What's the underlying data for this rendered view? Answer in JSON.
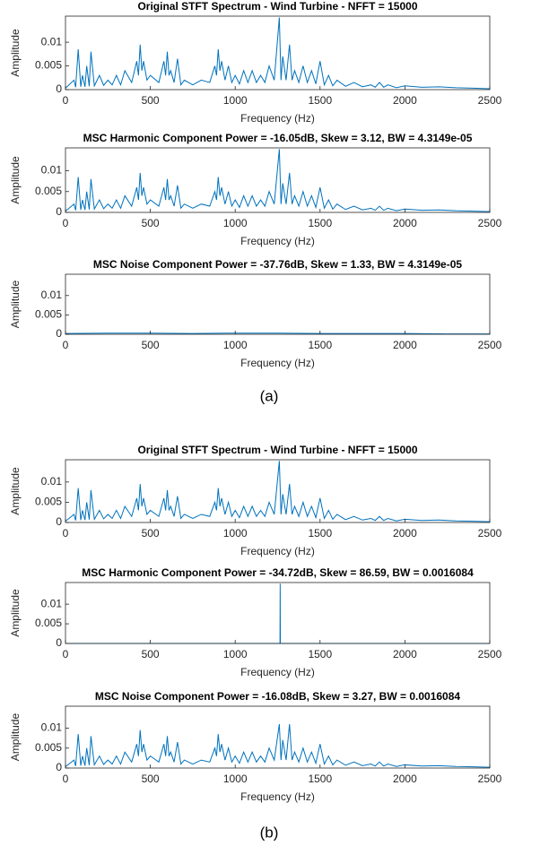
{
  "captions": [
    "(a)",
    "(b)"
  ],
  "chart_data": [
    {
      "type": "line",
      "title": "Original STFT Spectrum - Wind Turbine - NFFT = 15000",
      "xlabel": "Frequency (Hz)",
      "ylabel": "Amplitude",
      "color": "#0072bd",
      "xlim": [
        0,
        2500
      ],
      "xticks": [
        0,
        500,
        1000,
        1500,
        2000,
        2500
      ],
      "ylim": [
        0,
        0.0155
      ],
      "yticks": [
        0,
        0.005,
        0.01
      ],
      "x": [
        0,
        50,
        60,
        75,
        90,
        100,
        115,
        125,
        140,
        150,
        170,
        200,
        225,
        250,
        275,
        300,
        325,
        350,
        390,
        420,
        430,
        440,
        450,
        460,
        480,
        500,
        550,
        580,
        590,
        600,
        610,
        620,
        640,
        660,
        680,
        700,
        750,
        800,
        850,
        880,
        890,
        900,
        910,
        920,
        940,
        960,
        980,
        1000,
        1025,
        1050,
        1075,
        1100,
        1125,
        1150,
        1175,
        1200,
        1230,
        1260,
        1270,
        1280,
        1300,
        1320,
        1335,
        1350,
        1375,
        1400,
        1425,
        1450,
        1475,
        1500,
        1525,
        1550,
        1575,
        1600,
        1650,
        1700,
        1750,
        1800,
        1825,
        1850,
        1875,
        1900,
        1950,
        2000,
        2100,
        2200,
        2300,
        2400,
        2500
      ],
      "values": [
        0.0003,
        0.002,
        0.0005,
        0.0085,
        0.0006,
        0.003,
        0.0006,
        0.005,
        0.0007,
        0.008,
        0.0008,
        0.003,
        0.0009,
        0.002,
        0.001,
        0.003,
        0.001,
        0.004,
        0.0015,
        0.006,
        0.003,
        0.0095,
        0.004,
        0.006,
        0.002,
        0.003,
        0.0015,
        0.006,
        0.003,
        0.008,
        0.003,
        0.004,
        0.0015,
        0.0065,
        0.001,
        0.002,
        0.001,
        0.002,
        0.0015,
        0.005,
        0.003,
        0.0085,
        0.004,
        0.006,
        0.002,
        0.005,
        0.0015,
        0.003,
        0.0012,
        0.004,
        0.0015,
        0.004,
        0.0015,
        0.003,
        0.0015,
        0.005,
        0.002,
        0.0152,
        0.002,
        0.007,
        0.002,
        0.0095,
        0.002,
        0.004,
        0.0015,
        0.005,
        0.0015,
        0.004,
        0.0012,
        0.006,
        0.001,
        0.003,
        0.0008,
        0.002,
        0.0007,
        0.0015,
        0.0006,
        0.001,
        0.0005,
        0.0015,
        0.0005,
        0.001,
        0.0004,
        0.0008,
        0.0005,
        0.0006,
        0.0004,
        0.0003,
        0.0002
      ]
    },
    {
      "type": "line",
      "title": "MSC Harmonic Component Power = -16.05dB, Skew = 3.12, BW = 4.3149e-05",
      "xlabel": "Frequency (Hz)",
      "ylabel": "Amplitude",
      "color": "#0072bd",
      "xlim": [
        0,
        2500
      ],
      "xticks": [
        0,
        500,
        1000,
        1500,
        2000,
        2500
      ],
      "ylim": [
        0,
        0.0155
      ],
      "yticks": [
        0,
        0.005,
        0.01
      ],
      "x": [
        0,
        50,
        60,
        75,
        90,
        100,
        115,
        125,
        140,
        150,
        170,
        200,
        225,
        250,
        275,
        300,
        325,
        350,
        390,
        420,
        430,
        440,
        450,
        460,
        480,
        500,
        550,
        580,
        590,
        600,
        610,
        620,
        640,
        660,
        680,
        700,
        750,
        800,
        850,
        880,
        890,
        900,
        910,
        920,
        940,
        960,
        980,
        1000,
        1025,
        1050,
        1075,
        1100,
        1125,
        1150,
        1175,
        1200,
        1230,
        1260,
        1270,
        1280,
        1300,
        1320,
        1335,
        1350,
        1375,
        1400,
        1425,
        1450,
        1475,
        1500,
        1525,
        1550,
        1575,
        1600,
        1650,
        1700,
        1750,
        1800,
        1825,
        1850,
        1875,
        1900,
        1950,
        2000,
        2100,
        2200,
        2300,
        2400,
        2500
      ],
      "values": [
        0.0003,
        0.002,
        0.0005,
        0.0085,
        0.0006,
        0.003,
        0.0006,
        0.005,
        0.0007,
        0.008,
        0.0008,
        0.003,
        0.0009,
        0.002,
        0.001,
        0.003,
        0.001,
        0.004,
        0.0015,
        0.006,
        0.003,
        0.0095,
        0.004,
        0.006,
        0.002,
        0.003,
        0.0015,
        0.006,
        0.003,
        0.008,
        0.003,
        0.004,
        0.0015,
        0.0065,
        0.001,
        0.002,
        0.001,
        0.002,
        0.0015,
        0.005,
        0.003,
        0.0085,
        0.004,
        0.006,
        0.002,
        0.005,
        0.0015,
        0.003,
        0.0012,
        0.004,
        0.0015,
        0.004,
        0.0015,
        0.003,
        0.0015,
        0.005,
        0.002,
        0.0152,
        0.002,
        0.007,
        0.002,
        0.0095,
        0.002,
        0.004,
        0.0015,
        0.005,
        0.0015,
        0.004,
        0.0012,
        0.006,
        0.001,
        0.003,
        0.0008,
        0.002,
        0.0007,
        0.0015,
        0.0006,
        0.001,
        0.0005,
        0.0015,
        0.0005,
        0.001,
        0.0004,
        0.0008,
        0.0005,
        0.0006,
        0.0004,
        0.0003,
        0.0002
      ]
    },
    {
      "type": "line",
      "title": "MSC Noise Component Power = -37.76dB, Skew = 1.33, BW = 4.3149e-05",
      "xlabel": "Frequency (Hz)",
      "ylabel": "Amplitude",
      "color": "#0072bd",
      "xlim": [
        0,
        2500
      ],
      "xticks": [
        0,
        500,
        1000,
        1500,
        2000,
        2500
      ],
      "ylim": [
        0,
        0.0155
      ],
      "yticks": [
        0,
        0.005,
        0.01
      ],
      "x": [
        0,
        250,
        500,
        750,
        1000,
        1250,
        1500,
        1750,
        2000,
        2250,
        2500
      ],
      "values": [
        0.0002,
        0.0003,
        0.0003,
        0.0002,
        0.0003,
        0.0003,
        0.0002,
        0.0002,
        0.0002,
        0.0001,
        0.0001
      ]
    },
    {
      "type": "line",
      "title": "Original STFT Spectrum - Wind Turbine - NFFT = 15000",
      "xlabel": "Frequency (Hz)",
      "ylabel": "Amplitude",
      "color": "#0072bd",
      "xlim": [
        0,
        2500
      ],
      "xticks": [
        0,
        500,
        1000,
        1500,
        2000,
        2500
      ],
      "ylim": [
        0,
        0.0155
      ],
      "yticks": [
        0,
        0.005,
        0.01
      ],
      "x": [
        0,
        50,
        60,
        75,
        90,
        100,
        115,
        125,
        140,
        150,
        170,
        200,
        225,
        250,
        275,
        300,
        325,
        350,
        390,
        420,
        430,
        440,
        450,
        460,
        480,
        500,
        550,
        580,
        590,
        600,
        610,
        620,
        640,
        660,
        680,
        700,
        750,
        800,
        850,
        880,
        890,
        900,
        910,
        920,
        940,
        960,
        980,
        1000,
        1025,
        1050,
        1075,
        1100,
        1125,
        1150,
        1175,
        1200,
        1230,
        1260,
        1270,
        1280,
        1300,
        1320,
        1335,
        1350,
        1375,
        1400,
        1425,
        1450,
        1475,
        1500,
        1525,
        1550,
        1575,
        1600,
        1650,
        1700,
        1750,
        1800,
        1825,
        1850,
        1875,
        1900,
        1950,
        2000,
        2100,
        2200,
        2300,
        2400,
        2500
      ],
      "values": [
        0.0003,
        0.002,
        0.0005,
        0.0085,
        0.0006,
        0.003,
        0.0006,
        0.005,
        0.0007,
        0.008,
        0.0008,
        0.003,
        0.0009,
        0.002,
        0.001,
        0.003,
        0.001,
        0.004,
        0.0015,
        0.006,
        0.003,
        0.0095,
        0.004,
        0.006,
        0.002,
        0.003,
        0.0015,
        0.006,
        0.003,
        0.008,
        0.003,
        0.004,
        0.0015,
        0.0065,
        0.001,
        0.002,
        0.001,
        0.002,
        0.0015,
        0.005,
        0.003,
        0.0085,
        0.004,
        0.006,
        0.002,
        0.005,
        0.0015,
        0.003,
        0.0012,
        0.004,
        0.0015,
        0.004,
        0.0015,
        0.003,
        0.0015,
        0.005,
        0.002,
        0.0152,
        0.002,
        0.007,
        0.002,
        0.0095,
        0.002,
        0.004,
        0.0015,
        0.005,
        0.0015,
        0.004,
        0.0012,
        0.006,
        0.001,
        0.003,
        0.0008,
        0.002,
        0.0007,
        0.0015,
        0.0006,
        0.001,
        0.0005,
        0.0015,
        0.0005,
        0.001,
        0.0004,
        0.0008,
        0.0005,
        0.0006,
        0.0004,
        0.0003,
        0.0002
      ]
    },
    {
      "type": "line",
      "title": "MSC Harmonic Component Power = -34.72dB, Skew = 86.59, BW = 0.0016084",
      "xlabel": "Frequency (Hz)",
      "ylabel": "Amplitude",
      "color": "#0072bd",
      "xlim": [
        0,
        2500
      ],
      "xticks": [
        0,
        500,
        1000,
        1500,
        2000,
        2500
      ],
      "ylim": [
        0,
        0.0155
      ],
      "yticks": [
        0,
        0.005,
        0.01
      ],
      "x": [
        0,
        1264,
        1265,
        1266,
        2500
      ],
      "values": [
        0,
        0,
        0.0152,
        0,
        0
      ]
    },
    {
      "type": "line",
      "title": "MSC Noise Component Power = -16.08dB, Skew = 3.27, BW = 0.0016084",
      "xlabel": "Frequency (Hz)",
      "ylabel": "Amplitude",
      "color": "#0072bd",
      "xlim": [
        0,
        2500
      ],
      "xticks": [
        0,
        500,
        1000,
        1500,
        2000,
        2500
      ],
      "ylim": [
        0,
        0.0155
      ],
      "yticks": [
        0,
        0.005,
        0.01
      ],
      "x": [
        0,
        50,
        60,
        75,
        90,
        100,
        115,
        125,
        140,
        150,
        170,
        200,
        225,
        250,
        275,
        300,
        325,
        350,
        390,
        420,
        430,
        440,
        450,
        460,
        480,
        500,
        550,
        580,
        590,
        600,
        610,
        620,
        640,
        660,
        680,
        700,
        750,
        800,
        850,
        880,
        890,
        900,
        910,
        920,
        940,
        960,
        980,
        1000,
        1025,
        1050,
        1075,
        1100,
        1125,
        1150,
        1175,
        1200,
        1230,
        1260,
        1270,
        1280,
        1300,
        1320,
        1335,
        1350,
        1375,
        1400,
        1425,
        1450,
        1475,
        1500,
        1525,
        1550,
        1575,
        1600,
        1650,
        1700,
        1750,
        1800,
        1825,
        1850,
        1875,
        1900,
        1950,
        2000,
        2100,
        2200,
        2300,
        2400,
        2500
      ],
      "values": [
        0.0003,
        0.002,
        0.0005,
        0.0085,
        0.0006,
        0.003,
        0.0006,
        0.005,
        0.0007,
        0.008,
        0.0008,
        0.003,
        0.0009,
        0.002,
        0.001,
        0.003,
        0.001,
        0.004,
        0.0015,
        0.006,
        0.003,
        0.0095,
        0.004,
        0.006,
        0.002,
        0.003,
        0.0015,
        0.006,
        0.003,
        0.008,
        0.003,
        0.004,
        0.0015,
        0.0065,
        0.001,
        0.002,
        0.001,
        0.002,
        0.0015,
        0.005,
        0.003,
        0.0085,
        0.004,
        0.006,
        0.002,
        0.005,
        0.0015,
        0.003,
        0.0012,
        0.004,
        0.0015,
        0.004,
        0.0015,
        0.003,
        0.0015,
        0.005,
        0.002,
        0.011,
        0.002,
        0.007,
        0.002,
        0.011,
        0.002,
        0.004,
        0.0015,
        0.005,
        0.0015,
        0.004,
        0.0012,
        0.006,
        0.001,
        0.003,
        0.0008,
        0.002,
        0.0007,
        0.0015,
        0.0006,
        0.001,
        0.0005,
        0.0015,
        0.0005,
        0.001,
        0.0004,
        0.0008,
        0.0005,
        0.0006,
        0.0004,
        0.0003,
        0.0002
      ]
    }
  ]
}
